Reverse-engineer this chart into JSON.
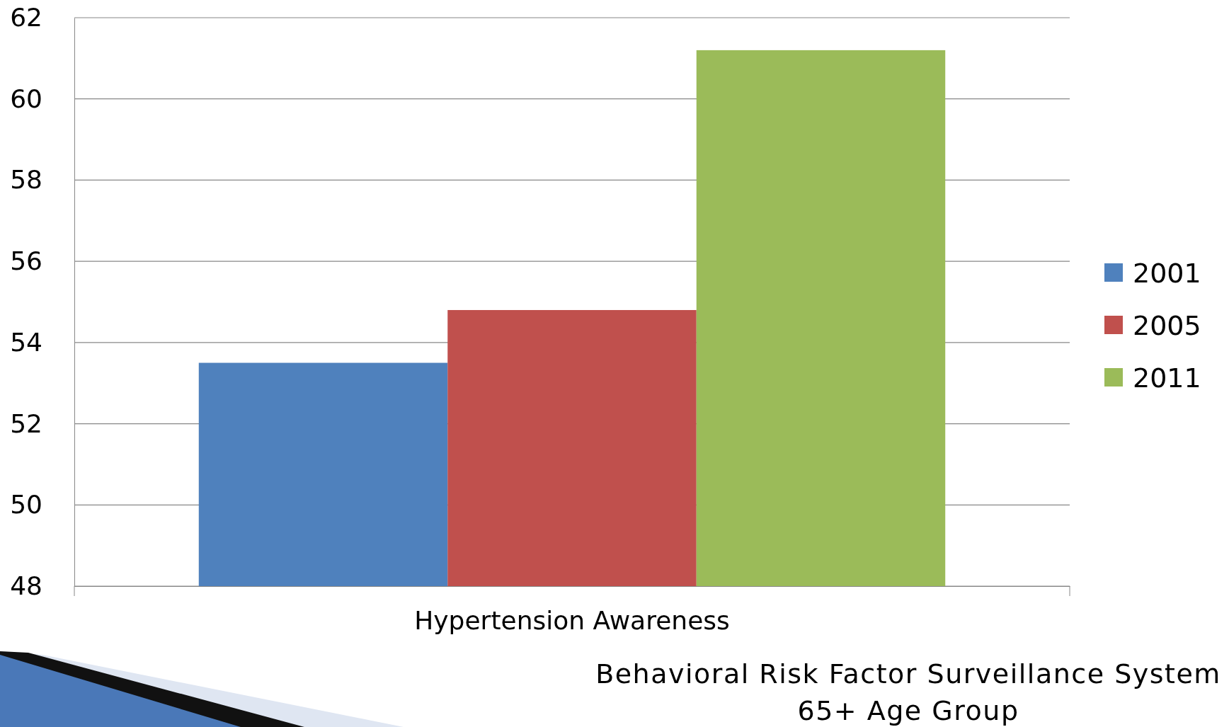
{
  "chart_data": {
    "type": "bar",
    "categories": [
      "Hypertension Awareness"
    ],
    "series": [
      {
        "name": "2001",
        "color": "#4f81bd",
        "values": [
          53.5
        ]
      },
      {
        "name": "2005",
        "color": "#c0504d",
        "values": [
          54.8
        ]
      },
      {
        "name": "2011",
        "color": "#9bbb59",
        "values": [
          61.2
        ]
      }
    ],
    "ylim": [
      48,
      62
    ],
    "yticks": [
      48,
      50,
      52,
      54,
      56,
      58,
      60,
      62
    ],
    "grid": "y",
    "legend": "right",
    "annotations": [
      "Behavioral Risk Factor Surveillance System",
      "65+ Age Group"
    ]
  }
}
